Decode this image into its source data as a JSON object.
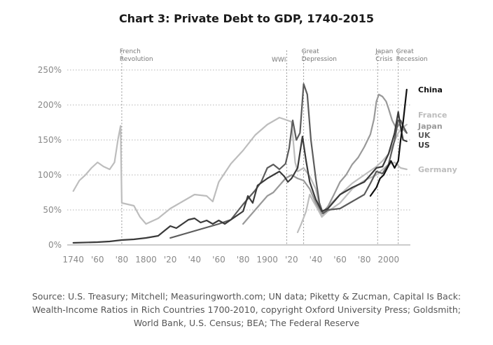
{
  "title": "Chart 3: Private Debt to GDP, 1740-2015",
  "source": "Source: U.S. Treasury; Mitchell; Measuringworth.com; UN data; Piketty & Zucman, Capital Is Back: Wealth-Income Ratios in Rich Countries 1700-2010, copyright Oxford University Press; Goldsmith; World Bank, U.S. Census; BEA; The Federal Reserve",
  "chart_data": {
    "type": "line",
    "title": "Chart 3: Private Debt to GDP, 1740-2015",
    "xlim": [
      1735,
      2018
    ],
    "ylim": [
      0,
      250
    ],
    "grid": true,
    "x_ticks": [
      1740,
      1760,
      1780,
      1800,
      1820,
      1840,
      1860,
      1880,
      1900,
      1920,
      1940,
      1960,
      1980,
      2000
    ],
    "x_tick_labels": [
      "1740",
      "'60",
      "'80",
      "1800",
      "'20",
      "'40",
      "'60",
      "'80",
      "1900",
      "'20",
      "'40",
      "'60",
      "'80",
      "2000"
    ],
    "y_ticks": [
      0,
      50,
      100,
      150,
      200,
      250
    ],
    "y_tick_labels": [
      "0%",
      "50%",
      "100%",
      "150%",
      "200%",
      "250%"
    ],
    "events": [
      {
        "x": 1780,
        "lines": [
          "French",
          "Revolution"
        ]
      },
      {
        "x": 1916,
        "lines": [
          "WWI"
        ]
      },
      {
        "x": 1930,
        "lines": [
          "Great",
          "Depression"
        ]
      },
      {
        "x": 1991,
        "lines": [
          "Japan",
          "Crisis"
        ]
      },
      {
        "x": 2008,
        "lines": [
          "Great",
          "Recession"
        ]
      }
    ],
    "series": [
      {
        "name": "Germany",
        "color": "#bdbdbd",
        "width": 2.2,
        "label_y": 108,
        "points": [
          [
            1740,
            77
          ],
          [
            1745,
            92
          ],
          [
            1750,
            100
          ],
          [
            1755,
            110
          ],
          [
            1760,
            118
          ],
          [
            1765,
            112
          ],
          [
            1770,
            108
          ],
          [
            1774,
            118
          ],
          [
            1777,
            152
          ],
          [
            1779,
            170
          ],
          [
            1780,
            60
          ],
          [
            1790,
            56
          ],
          [
            1795,
            40
          ],
          [
            1800,
            30
          ],
          [
            1810,
            38
          ],
          [
            1820,
            52
          ],
          [
            1830,
            62
          ],
          [
            1840,
            72
          ],
          [
            1850,
            70
          ],
          [
            1855,
            62
          ],
          [
            1860,
            90
          ],
          [
            1870,
            116
          ],
          [
            1880,
            135
          ],
          [
            1890,
            157
          ],
          [
            1900,
            172
          ],
          [
            1910,
            182
          ],
          [
            1920,
            176
          ],
          [
            1923,
            118
          ],
          [
            1925,
            105
          ],
          [
            1930,
            110
          ],
          [
            1935,
            98
          ],
          [
            1940,
            80
          ],
          [
            1945,
            40
          ],
          [
            1950,
            48
          ],
          [
            1960,
            60
          ],
          [
            1970,
            80
          ],
          [
            1980,
            92
          ],
          [
            1990,
            100
          ],
          [
            2000,
            115
          ],
          [
            2005,
            118
          ],
          [
            2010,
            110
          ],
          [
            2015,
            108
          ]
        ]
      },
      {
        "name": "France",
        "color": "#bdbdbd",
        "width": 2.2,
        "label_y": 186,
        "points": [
          [
            1925,
            18
          ],
          [
            1928,
            30
          ],
          [
            1932,
            48
          ],
          [
            1935,
            72
          ],
          [
            1938,
            62
          ],
          [
            1942,
            50
          ],
          [
            1945,
            40
          ],
          [
            1950,
            55
          ],
          [
            1960,
            72
          ],
          [
            1970,
            88
          ],
          [
            1980,
            100
          ],
          [
            1990,
            112
          ],
          [
            1995,
            120
          ],
          [
            2000,
            130
          ],
          [
            2005,
            148
          ],
          [
            2008,
            160
          ],
          [
            2011,
            167
          ],
          [
            2015,
            172
          ]
        ]
      },
      {
        "name": "Japan",
        "color": "#999999",
        "width": 2.2,
        "label_y": 170,
        "points": [
          [
            1880,
            30
          ],
          [
            1885,
            40
          ],
          [
            1890,
            50
          ],
          [
            1895,
            60
          ],
          [
            1900,
            70
          ],
          [
            1905,
            75
          ],
          [
            1910,
            85
          ],
          [
            1915,
            95
          ],
          [
            1920,
            100
          ],
          [
            1925,
            95
          ],
          [
            1930,
            92
          ],
          [
            1935,
            80
          ],
          [
            1940,
            60
          ],
          [
            1945,
            45
          ],
          [
            1950,
            55
          ],
          [
            1955,
            72
          ],
          [
            1960,
            90
          ],
          [
            1965,
            100
          ],
          [
            1970,
            115
          ],
          [
            1975,
            125
          ],
          [
            1980,
            140
          ],
          [
            1985,
            158
          ],
          [
            1988,
            180
          ],
          [
            1990,
            205
          ],
          [
            1992,
            215
          ],
          [
            1995,
            212
          ],
          [
            1998,
            205
          ],
          [
            2000,
            195
          ],
          [
            2003,
            178
          ],
          [
            2006,
            168
          ],
          [
            2009,
            172
          ],
          [
            2012,
            165
          ],
          [
            2015,
            160
          ]
        ]
      },
      {
        "name": "UK",
        "color": "#5c5c5c",
        "width": 2.2,
        "label_y": 157,
        "points": [
          [
            1820,
            10
          ],
          [
            1830,
            15
          ],
          [
            1840,
            20
          ],
          [
            1850,
            25
          ],
          [
            1860,
            30
          ],
          [
            1870,
            36
          ],
          [
            1880,
            58
          ],
          [
            1885,
            68
          ],
          [
            1890,
            78
          ],
          [
            1895,
            90
          ],
          [
            1900,
            110
          ],
          [
            1905,
            115
          ],
          [
            1910,
            108
          ],
          [
            1915,
            116
          ],
          [
            1918,
            138
          ],
          [
            1921,
            178
          ],
          [
            1924,
            150
          ],
          [
            1927,
            160
          ],
          [
            1930,
            230
          ],
          [
            1933,
            215
          ],
          [
            1936,
            150
          ],
          [
            1940,
            95
          ],
          [
            1943,
            60
          ],
          [
            1946,
            45
          ],
          [
            1950,
            50
          ],
          [
            1960,
            52
          ],
          [
            1970,
            62
          ],
          [
            1980,
            72
          ],
          [
            1985,
            88
          ],
          [
            1990,
            105
          ],
          [
            1995,
            102
          ],
          [
            2000,
            115
          ],
          [
            2005,
            150
          ],
          [
            2008,
            178
          ],
          [
            2010,
            178
          ],
          [
            2012,
            170
          ],
          [
            2015,
            160
          ]
        ]
      },
      {
        "name": "US",
        "color": "#3a3a3a",
        "width": 2.2,
        "label_y": 143,
        "points": [
          [
            1740,
            3
          ],
          [
            1760,
            4
          ],
          [
            1770,
            5
          ],
          [
            1780,
            7
          ],
          [
            1790,
            8
          ],
          [
            1800,
            10
          ],
          [
            1810,
            13
          ],
          [
            1815,
            20
          ],
          [
            1820,
            27
          ],
          [
            1825,
            24
          ],
          [
            1830,
            30
          ],
          [
            1835,
            36
          ],
          [
            1840,
            38
          ],
          [
            1845,
            32
          ],
          [
            1850,
            35
          ],
          [
            1855,
            30
          ],
          [
            1860,
            35
          ],
          [
            1865,
            30
          ],
          [
            1870,
            36
          ],
          [
            1875,
            42
          ],
          [
            1880,
            48
          ],
          [
            1884,
            70
          ],
          [
            1888,
            60
          ],
          [
            1892,
            85
          ],
          [
            1896,
            90
          ],
          [
            1900,
            95
          ],
          [
            1905,
            100
          ],
          [
            1910,
            105
          ],
          [
            1914,
            98
          ],
          [
            1917,
            90
          ],
          [
            1920,
            95
          ],
          [
            1925,
            110
          ],
          [
            1929,
            155
          ],
          [
            1932,
            120
          ],
          [
            1935,
            90
          ],
          [
            1940,
            65
          ],
          [
            1945,
            48
          ],
          [
            1950,
            52
          ],
          [
            1960,
            72
          ],
          [
            1970,
            82
          ],
          [
            1980,
            90
          ],
          [
            1985,
            100
          ],
          [
            1990,
            110
          ],
          [
            1995,
            112
          ],
          [
            2000,
            130
          ],
          [
            2005,
            160
          ],
          [
            2008,
            190
          ],
          [
            2010,
            168
          ],
          [
            2012,
            150
          ],
          [
            2015,
            148
          ]
        ]
      },
      {
        "name": "China",
        "color": "#111111",
        "width": 2.2,
        "label_y": 222,
        "points": [
          [
            1985,
            70
          ],
          [
            1990,
            82
          ],
          [
            1993,
            95
          ],
          [
            1996,
            100
          ],
          [
            1999,
            110
          ],
          [
            2002,
            120
          ],
          [
            2005,
            110
          ],
          [
            2008,
            120
          ],
          [
            2010,
            150
          ],
          [
            2012,
            175
          ],
          [
            2015,
            222
          ]
        ]
      }
    ]
  }
}
